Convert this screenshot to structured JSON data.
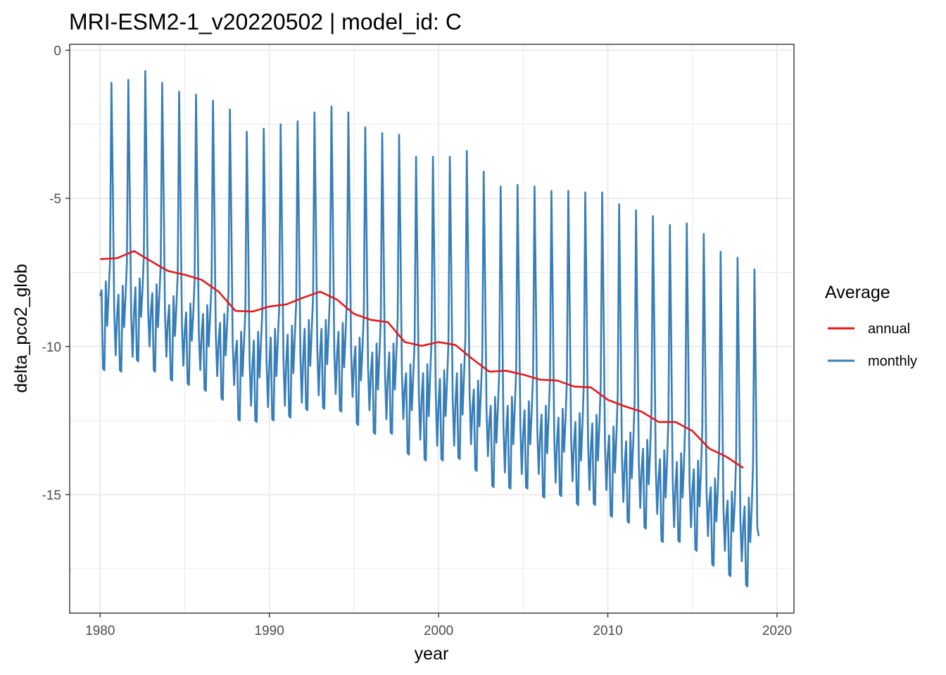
{
  "chart_data": {
    "type": "line",
    "title": "MRI-ESM2-1_v20220502 | model_id: C",
    "xlabel": "year",
    "ylabel": "delta_pco2_glob",
    "xlim": [
      1978.2,
      2021.0
    ],
    "ylim": [
      -19.0,
      0.2
    ],
    "x_ticks": [
      1980,
      1990,
      2000,
      2010,
      2020
    ],
    "x_tick_labels": [
      "1980",
      "1990",
      "2000",
      "2010",
      "2020"
    ],
    "y_ticks": [
      0,
      -5,
      -10,
      -15
    ],
    "y_tick_labels": [
      "0",
      "-5",
      "-10",
      "-15"
    ],
    "grid": true,
    "legend": {
      "title": "Average",
      "position": "right",
      "entries": [
        {
          "label": "annual",
          "color": "#e41a1c"
        },
        {
          "label": "monthly",
          "color": "#377eb8"
        }
      ]
    },
    "series": [
      {
        "name": "annual",
        "color": "#e41a1c",
        "x": [
          1980,
          1981,
          1982,
          1983,
          1984,
          1985,
          1986,
          1987,
          1988,
          1989,
          1990,
          1991,
          1992,
          1993,
          1994,
          1995,
          1996,
          1997,
          1998,
          1999,
          2000,
          2001,
          2002,
          2003,
          2004,
          2005,
          2006,
          2007,
          2008,
          2009,
          2010,
          2011,
          2012,
          2013,
          2014,
          2015,
          2016,
          2017,
          2018
        ],
        "values": [
          -7.05,
          -7.02,
          -6.78,
          -7.12,
          -7.45,
          -7.58,
          -7.75,
          -8.15,
          -8.8,
          -8.82,
          -8.65,
          -8.58,
          -8.35,
          -8.15,
          -8.42,
          -8.9,
          -9.1,
          -9.18,
          -9.85,
          -9.98,
          -9.85,
          -9.95,
          -10.42,
          -10.85,
          -10.82,
          -10.95,
          -11.12,
          -11.15,
          -11.35,
          -11.38,
          -11.8,
          -12.02,
          -12.2,
          -12.55,
          -12.55,
          -12.85,
          -13.45,
          -13.72,
          -14.1
        ]
      },
      {
        "name": "monthly",
        "color": "#377eb8",
        "peaks": [
          -1.1,
          -1.0,
          -0.7,
          -1.1,
          -1.4,
          -1.5,
          -1.7,
          -2.0,
          -2.75,
          -2.65,
          -2.5,
          -2.4,
          -2.1,
          -1.9,
          -2.1,
          -2.6,
          -2.8,
          -2.85,
          -3.6,
          -3.6,
          -3.6,
          -3.4,
          -4.1,
          -4.6,
          -4.55,
          -4.6,
          -4.75,
          -4.75,
          -4.8,
          -4.8,
          -5.2,
          -5.4,
          -5.6,
          -5.9,
          -5.85,
          -6.2,
          -6.8,
          -7.0,
          -7.4
        ],
        "troughs": [
          -10.8,
          -10.85,
          -10.5,
          -10.85,
          -11.15,
          -11.3,
          -11.5,
          -11.8,
          -12.5,
          -12.55,
          -12.5,
          -12.4,
          -12.15,
          -12.1,
          -12.2,
          -12.65,
          -12.95,
          -12.95,
          -13.65,
          -13.85,
          -13.85,
          -13.8,
          -14.2,
          -14.75,
          -14.8,
          -14.8,
          -15.1,
          -15.05,
          -15.35,
          -15.35,
          -15.75,
          -15.95,
          -16.15,
          -16.6,
          -16.6,
          -16.9,
          -17.4,
          -17.75,
          -18.1
        ],
        "secondary_peaks": [
          -8.2,
          -8.35,
          -8.1,
          -8.3,
          -8.7,
          -8.95,
          -9.0,
          -9.3,
          -9.9,
          -9.9,
          -9.8,
          -9.7,
          -9.5,
          -9.5,
          -9.6,
          -10.1,
          -10.3,
          -10.3,
          -11.0,
          -11.0,
          -11.2,
          -11.0,
          -11.55,
          -12.1,
          -12.1,
          -12.25,
          -12.4,
          -12.5,
          -12.65,
          -12.7,
          -13.1,
          -13.3,
          -13.55,
          -13.9,
          -14.0,
          -14.25,
          -14.85,
          -15.3,
          -15.5
        ],
        "start_value": -8.3,
        "end_value": -16.4
      }
    ]
  }
}
